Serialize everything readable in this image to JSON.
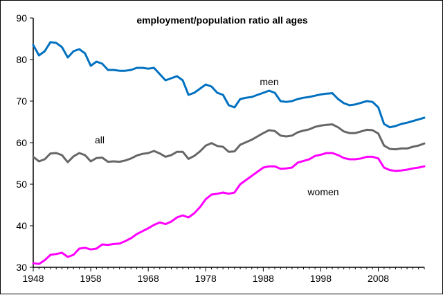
{
  "chart_data": {
    "type": "line",
    "title": "employment/population ratio all ages",
    "xlabel": "",
    "ylabel": "",
    "xlim": [
      1948,
      2016
    ],
    "ylim": [
      30,
      90
    ],
    "x_ticks": [
      "1948",
      "1958",
      "1968",
      "1978",
      "1988",
      "1998",
      "2008"
    ],
    "y_ticks": [
      "30",
      "40",
      "50",
      "60",
      "70",
      "80",
      "90"
    ],
    "grid": false,
    "legend": "inline labels",
    "series": [
      {
        "name": "men",
        "color": "#0070C0",
        "x": [
          1948,
          1949,
          1950,
          1951,
          1952,
          1953,
          1954,
          1955,
          1956,
          1957,
          1958,
          1959,
          1960,
          1961,
          1962,
          1963,
          1964,
          1965,
          1966,
          1967,
          1968,
          1969,
          1970,
          1971,
          1972,
          1973,
          1974,
          1975,
          1976,
          1977,
          1978,
          1979,
          1980,
          1981,
          1982,
          1983,
          1984,
          1985,
          1986,
          1987,
          1988,
          1989,
          1990,
          1991,
          1992,
          1993,
          1994,
          1995,
          1996,
          1997,
          1998,
          1999,
          2000,
          2001,
          2002,
          2003,
          2004,
          2005,
          2006,
          2007,
          2008,
          2009,
          2010,
          2011,
          2012,
          2013,
          2014,
          2015,
          2016
        ],
        "values": [
          83.5,
          81.0,
          82.0,
          84.2,
          84.0,
          83.0,
          80.5,
          82.0,
          82.5,
          81.5,
          78.5,
          79.5,
          79.0,
          77.5,
          77.5,
          77.3,
          77.3,
          77.5,
          78.0,
          78.0,
          77.8,
          78.0,
          76.5,
          75.0,
          75.5,
          76.0,
          75.0,
          71.5,
          72.0,
          73.0,
          74.0,
          73.5,
          72.0,
          71.5,
          69.0,
          68.5,
          70.5,
          70.8,
          71.0,
          71.5,
          72.0,
          72.5,
          72.0,
          70.0,
          69.8,
          70.0,
          70.5,
          70.8,
          71.0,
          71.3,
          71.6,
          71.8,
          71.9,
          70.5,
          69.5,
          69.0,
          69.2,
          69.6,
          70.0,
          69.8,
          68.5,
          64.5,
          63.7,
          64.0,
          64.5,
          64.8,
          65.2,
          65.6,
          66.0
        ]
      },
      {
        "name": "all",
        "color": "#666666",
        "x": [
          1948,
          1949,
          1950,
          1951,
          1952,
          1953,
          1954,
          1955,
          1956,
          1957,
          1958,
          1959,
          1960,
          1961,
          1962,
          1963,
          1964,
          1965,
          1966,
          1967,
          1968,
          1969,
          1970,
          1971,
          1972,
          1973,
          1974,
          1975,
          1976,
          1977,
          1978,
          1979,
          1980,
          1981,
          1982,
          1983,
          1984,
          1985,
          1986,
          1987,
          1988,
          1989,
          1990,
          1991,
          1992,
          1993,
          1994,
          1995,
          1996,
          1997,
          1998,
          1999,
          2000,
          2001,
          2002,
          2003,
          2004,
          2005,
          2006,
          2007,
          2008,
          2009,
          2010,
          2011,
          2012,
          2013,
          2014,
          2015,
          2016
        ],
        "values": [
          56.6,
          55.5,
          56.0,
          57.4,
          57.5,
          57.0,
          55.3,
          56.7,
          57.5,
          57.0,
          55.5,
          56.3,
          56.4,
          55.4,
          55.5,
          55.4,
          55.7,
          56.2,
          56.9,
          57.3,
          57.5,
          58.0,
          57.4,
          56.6,
          57.0,
          57.8,
          57.8,
          56.1,
          56.8,
          57.9,
          59.3,
          59.9,
          59.2,
          59.0,
          57.8,
          57.9,
          59.5,
          60.1,
          60.7,
          61.5,
          62.3,
          63.0,
          62.8,
          61.7,
          61.5,
          61.7,
          62.5,
          62.9,
          63.2,
          63.8,
          64.1,
          64.3,
          64.4,
          63.7,
          62.7,
          62.3,
          62.3,
          62.7,
          63.1,
          63.0,
          62.2,
          59.3,
          58.5,
          58.4,
          58.6,
          58.6,
          59.0,
          59.3,
          59.8
        ]
      },
      {
        "name": "women",
        "color": "#FF00FF",
        "x": [
          1948,
          1949,
          1950,
          1951,
          1952,
          1953,
          1954,
          1955,
          1956,
          1957,
          1958,
          1959,
          1960,
          1961,
          1962,
          1963,
          1964,
          1965,
          1966,
          1967,
          1968,
          1969,
          1970,
          1971,
          1972,
          1973,
          1974,
          1975,
          1976,
          1977,
          1978,
          1979,
          1980,
          1981,
          1982,
          1983,
          1984,
          1985,
          1986,
          1987,
          1988,
          1989,
          1990,
          1991,
          1992,
          1993,
          1994,
          1995,
          1996,
          1997,
          1998,
          1999,
          2000,
          2001,
          2002,
          2003,
          2004,
          2005,
          2006,
          2007,
          2008,
          2009,
          2010,
          2011,
          2012,
          2013,
          2014,
          2015,
          2016
        ],
        "values": [
          31.0,
          30.8,
          31.7,
          33.0,
          33.2,
          33.5,
          32.5,
          33.0,
          34.5,
          34.7,
          34.3,
          34.5,
          35.5,
          35.4,
          35.6,
          35.7,
          36.3,
          37.0,
          38.0,
          38.7,
          39.4,
          40.2,
          40.8,
          40.4,
          41.0,
          42.0,
          42.5,
          42.0,
          43.0,
          44.5,
          46.4,
          47.5,
          47.7,
          48.0,
          47.7,
          48.0,
          50.0,
          51.0,
          52.0,
          53.0,
          54.0,
          54.3,
          54.3,
          53.7,
          53.8,
          54.0,
          55.2,
          55.6,
          56.0,
          56.8,
          57.1,
          57.5,
          57.5,
          57.0,
          56.3,
          56.0,
          56.0,
          56.2,
          56.6,
          56.6,
          56.2,
          54.0,
          53.4,
          53.2,
          53.3,
          53.5,
          53.8,
          54.0,
          54.3
        ]
      }
    ]
  }
}
